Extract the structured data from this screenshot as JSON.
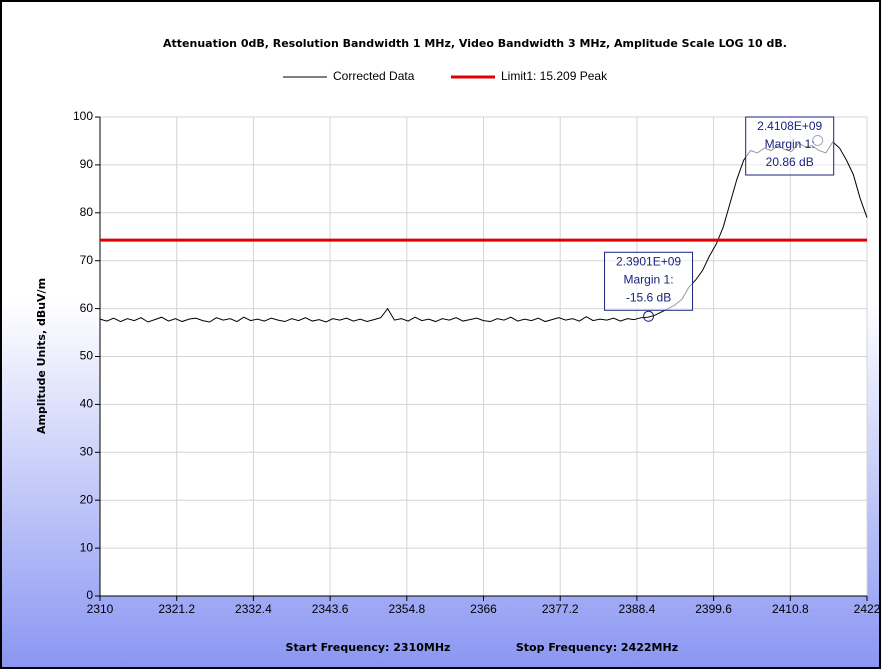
{
  "chart_data": {
    "type": "line",
    "title": "Attenuation 0dB, Resolution Bandwidth 1 MHz, Video Bandwidth 3 MHz, Amplitude Scale LOG 10 dB.",
    "ylabel": "Amplitude Units, dBuV/m",
    "footer": [
      "Start Frequency: 2310MHz",
      "Stop Frequency: 2422MHz"
    ],
    "xlim": [
      2310,
      2422
    ],
    "xticks": [
      2310,
      2321.2,
      2332.4,
      2343.6,
      2354.8,
      2366,
      2377.2,
      2388.4,
      2399.6,
      2410.8,
      2422
    ],
    "ylim": [
      0,
      100
    ],
    "yticks": [
      0,
      10,
      20,
      30,
      40,
      50,
      60,
      70,
      80,
      90,
      100
    ],
    "grid": true,
    "x": [
      2310,
      2311,
      2312,
      2313,
      2314,
      2315,
      2316,
      2317,
      2318,
      2319,
      2320,
      2321,
      2322,
      2323,
      2324,
      2325,
      2326,
      2327,
      2328,
      2329,
      2330,
      2331,
      2332,
      2333,
      2334,
      2335,
      2336,
      2337,
      2338,
      2339,
      2340,
      2341,
      2342,
      2343,
      2344,
      2345,
      2346,
      2347,
      2348,
      2349,
      2350,
      2351,
      2352,
      2353,
      2354,
      2355,
      2356,
      2357,
      2358,
      2359,
      2360,
      2361,
      2362,
      2363,
      2364,
      2365,
      2366,
      2367,
      2368,
      2369,
      2370,
      2371,
      2372,
      2373,
      2374,
      2375,
      2376,
      2377,
      2378,
      2379,
      2380,
      2381,
      2382,
      2383,
      2384,
      2385,
      2386,
      2387,
      2388,
      2389,
      2390,
      2391,
      2392,
      2393,
      2394,
      2395,
      2396,
      2397,
      2398,
      2399,
      2400,
      2401,
      2402,
      2403,
      2404,
      2405,
      2406,
      2407,
      2408,
      2409,
      2410,
      2411,
      2412,
      2413,
      2414,
      2415,
      2416,
      2417,
      2418,
      2419,
      2420,
      2421,
      2422
    ],
    "series": [
      {
        "name": "Corrected Data",
        "color": "#000000",
        "values": [
          57.8,
          57.4,
          58.0,
          57.3,
          57.9,
          57.5,
          58.1,
          57.2,
          57.7,
          58.2,
          57.4,
          57.9,
          57.3,
          57.8,
          58.0,
          57.5,
          57.2,
          58.1,
          57.6,
          57.9,
          57.3,
          58.2,
          57.5,
          57.8,
          57.4,
          58.0,
          57.6,
          57.3,
          57.9,
          57.5,
          58.1,
          57.4,
          57.7,
          57.2,
          57.9,
          57.6,
          58.0,
          57.4,
          57.8,
          57.3,
          57.7,
          58.1,
          60.0,
          57.6,
          57.9,
          57.4,
          58.2,
          57.5,
          57.8,
          57.3,
          57.9,
          57.6,
          58.1,
          57.4,
          57.7,
          58.0,
          57.5,
          57.3,
          57.9,
          57.6,
          58.2,
          57.4,
          57.8,
          57.5,
          58.0,
          57.3,
          57.7,
          58.1,
          57.6,
          57.9,
          57.4,
          58.3,
          57.5,
          57.8,
          57.6,
          58.0,
          57.4,
          57.9,
          57.7,
          58.1,
          58.2,
          58.6,
          59.3,
          60.0,
          60.8,
          62.0,
          64.5,
          66.0,
          68.0,
          71.0,
          73.5,
          77.0,
          82.0,
          87.0,
          91.0,
          93.0,
          92.5,
          93.5,
          93.0,
          94.0,
          93.2,
          92.8,
          94.5,
          93.8,
          94.0,
          93.0,
          92.5,
          94.8,
          93.5,
          91.0,
          88.0,
          83.0,
          79.0
        ]
      }
    ],
    "limit": {
      "name": "Limit1: 15.209 Peak",
      "color": "#e00000",
      "value": 74.3
    },
    "annotations": [
      {
        "x": 2390.1,
        "y": 58.4,
        "lines": [
          "2.3901E+09",
          "Margin 1:",
          "-15.6 dB"
        ]
      },
      {
        "x": 2414.8,
        "y": 95.1,
        "lines": [
          "2.4108E+09",
          "Margin 1:",
          "20.86 dB"
        ]
      }
    ]
  }
}
